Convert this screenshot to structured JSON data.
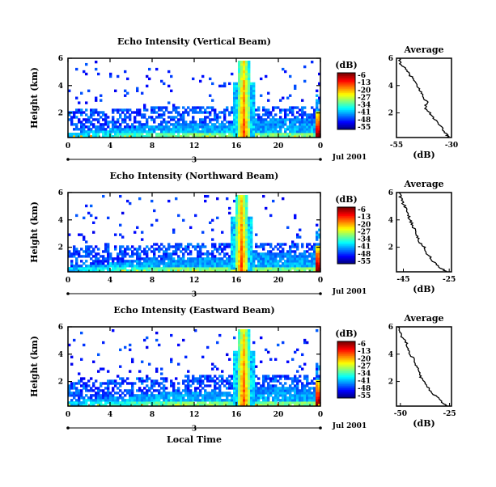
{
  "chart_data": [
    {
      "type": "heatmap",
      "title": "Echo Intensity (Vertical Beam)",
      "ylabel": "Height (km)",
      "xlabel": "",
      "x_ticks": [
        "0",
        "4",
        "8",
        "12",
        "16",
        "20",
        "0"
      ],
      "y_ticks": [
        "2",
        "4",
        "6"
      ],
      "xlim": [
        0,
        24
      ],
      "ylim": [
        0.2,
        6
      ],
      "day_label": "3",
      "date_label": "Jul 2001",
      "colorbar": {
        "title": "(dB)",
        "ticks": [
          "-6",
          "-13",
          "-20",
          "-27",
          "-34",
          "-41",
          "-48",
          "-55"
        ],
        "range": [
          -55,
          -6
        ]
      },
      "description_fields": {
        "noise_top_km": 2.2,
        "convection_hour": 16.7,
        "late_event_hour": 23.6
      },
      "profile": {
        "title": "Average",
        "xlabel": "(dB)",
        "x_ticks": [
          "-55",
          "-30"
        ],
        "xlim": [
          -55,
          -30
        ],
        "y_ticks": [
          "2",
          "4",
          "6"
        ],
        "ylim": [
          0.2,
          6
        ],
        "height": [
          6.0,
          5.6,
          5.2,
          4.8,
          4.4,
          4.0,
          3.6,
          3.2,
          2.8,
          2.4,
          2.0,
          1.6,
          1.2,
          0.8,
          0.4,
          0.2
        ],
        "db": [
          -54,
          -53,
          -51,
          -49,
          -47,
          -46,
          -44,
          -43,
          -41,
          -42,
          -40,
          -38,
          -36,
          -34,
          -32,
          -31
        ]
      }
    },
    {
      "type": "heatmap",
      "title": "Echo Intensity (Northward Beam)",
      "ylabel": "Height (km)",
      "xlabel": "",
      "x_ticks": [
        "0",
        "4",
        "8",
        "12",
        "16",
        "20",
        "0"
      ],
      "y_ticks": [
        "2",
        "4",
        "6"
      ],
      "xlim": [
        0,
        24
      ],
      "ylim": [
        0.2,
        6
      ],
      "day_label": "3",
      "date_label": "Jul 2001",
      "colorbar": {
        "title": "(dB)",
        "ticks": [
          "-6",
          "-13",
          "-20",
          "-27",
          "-34",
          "-41",
          "-48",
          "-55"
        ],
        "range": [
          -55,
          -6
        ]
      },
      "description_fields": {
        "noise_top_km": 2.0,
        "convection_hour": 16.5,
        "late_event_hour": 23.6
      },
      "profile": {
        "title": "Average",
        "xlabel": "(dB)",
        "x_ticks": [
          "-45",
          "-25"
        ],
        "xlim": [
          -48,
          -24
        ],
        "y_ticks": [
          "2",
          "4",
          "6"
        ],
        "ylim": [
          0.2,
          6
        ],
        "height": [
          6.0,
          5.6,
          5.2,
          4.8,
          4.4,
          4.0,
          3.6,
          3.2,
          2.8,
          2.4,
          2.0,
          1.6,
          1.2,
          0.8,
          0.4,
          0.2
        ],
        "db": [
          -47,
          -46,
          -45,
          -44,
          -43,
          -42,
          -41,
          -40,
          -39,
          -38,
          -36,
          -35,
          -33,
          -31,
          -28,
          -26
        ]
      }
    },
    {
      "type": "heatmap",
      "title": "Echo Intensity (Eastward Beam)",
      "ylabel": "Height (km)",
      "xlabel": "Local Time",
      "x_ticks": [
        "0",
        "4",
        "8",
        "12",
        "16",
        "20",
        "0"
      ],
      "y_ticks": [
        "2",
        "4",
        "6"
      ],
      "xlim": [
        0,
        24
      ],
      "ylim": [
        0.2,
        6
      ],
      "day_label": "3",
      "date_label": "Jul 2001",
      "colorbar": {
        "title": "(dB)",
        "ticks": [
          "-6",
          "-13",
          "-20",
          "-27",
          "-34",
          "-41",
          "-48",
          "-55"
        ],
        "range": [
          -55,
          -6
        ]
      },
      "description_fields": {
        "noise_top_km": 2.1,
        "convection_hour": 16.7,
        "late_event_hour": 23.6
      },
      "profile": {
        "title": "Average",
        "xlabel": "(dB)",
        "x_ticks": [
          "-50",
          "-25"
        ],
        "xlim": [
          -52,
          -24
        ],
        "y_ticks": [
          "2",
          "4",
          "6"
        ],
        "ylim": [
          0.2,
          6
        ],
        "height": [
          6.0,
          5.6,
          5.2,
          4.8,
          4.4,
          4.0,
          3.6,
          3.2,
          2.8,
          2.4,
          2.0,
          1.6,
          1.2,
          0.8,
          0.4,
          0.2
        ],
        "db": [
          -51,
          -50,
          -49,
          -47,
          -46,
          -45,
          -43,
          -42,
          -41,
          -40,
          -38,
          -36,
          -34,
          -31,
          -28,
          -26
        ]
      }
    }
  ]
}
